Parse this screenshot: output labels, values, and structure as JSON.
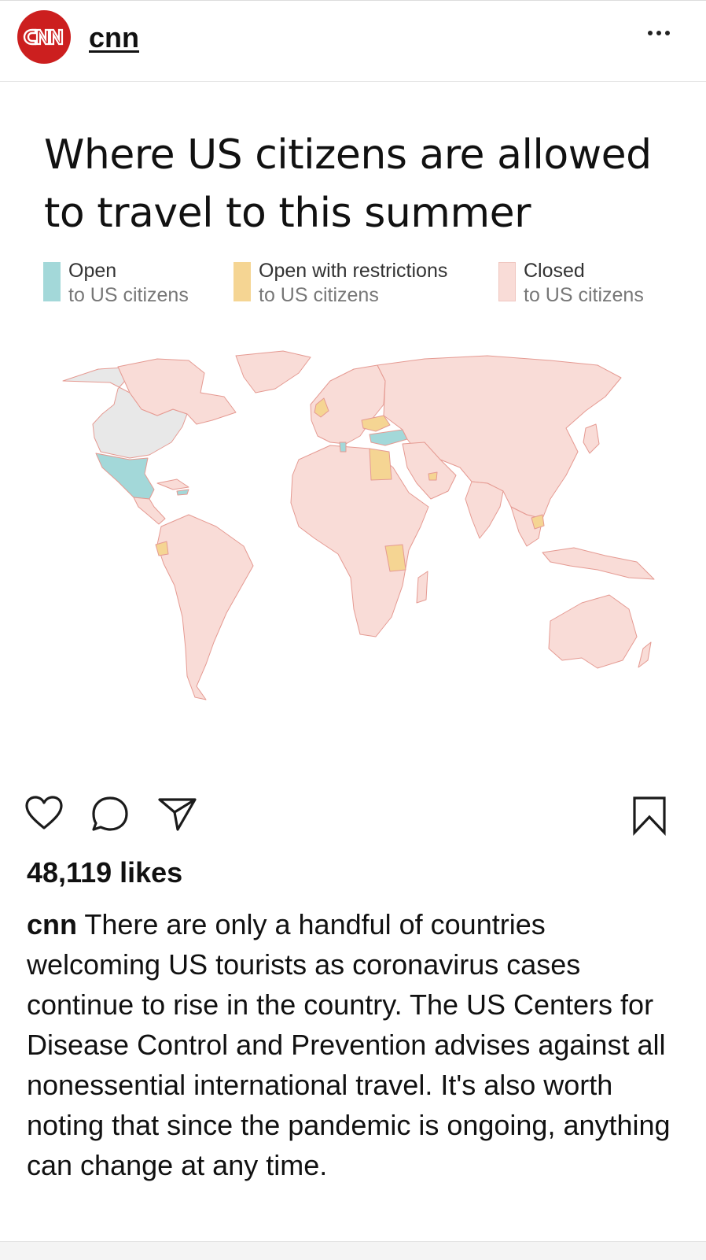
{
  "header": {
    "avatar_logo_text": "CNN",
    "username": "cnn"
  },
  "post": {
    "title": "Where US citizens are allowed to travel to this summer",
    "legend": [
      {
        "label": "Open",
        "sub": "to US citizens",
        "color": "#a3d8d9"
      },
      {
        "label": "Open with restrictions",
        "sub": "to US citizens",
        "color": "#f5d593"
      },
      {
        "label": "Closed",
        "sub": "to US citizens",
        "color": "#f9dcd7"
      }
    ],
    "map_colors": {
      "closed": "#f9dcd7",
      "border": "#e59a92",
      "us_canada": "#e8e8e8",
      "open": "#a3d8d9",
      "restricted": "#f5d593"
    }
  },
  "actions": {
    "icons": [
      "heart-icon",
      "comment-icon",
      "share-icon",
      "bookmark-icon"
    ]
  },
  "likes": "48,119 likes",
  "caption": {
    "user": "cnn",
    "text": "There are only a handful of countries welcoming US tourists as coronavirus cases continue to rise in the country. The US Centers for Disease Control and Prevention advises against all nonessential international travel. It's also worth noting that since the pandemic is ongoing, anything can change at any time."
  }
}
